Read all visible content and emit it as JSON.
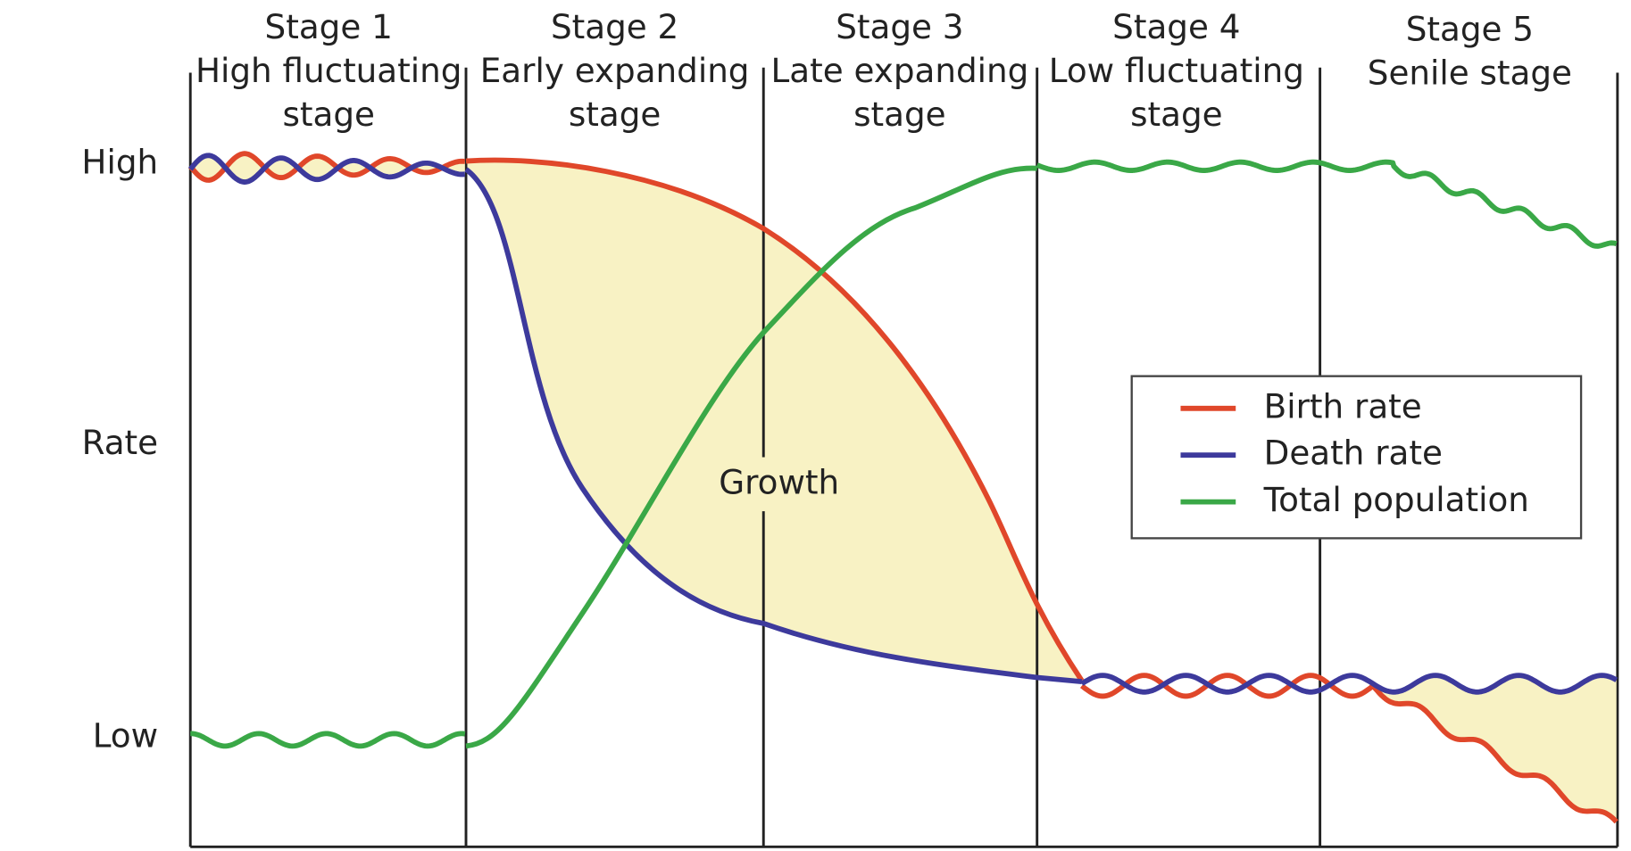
{
  "stages": [
    {
      "name": "Stage 1",
      "lines": [
        "High fluctuating",
        "stage"
      ]
    },
    {
      "name": "Stage 2",
      "lines": [
        "Early expanding",
        "stage"
      ]
    },
    {
      "name": "Stage 3",
      "lines": [
        "Late expanding",
        "stage"
      ]
    },
    {
      "name": "Stage 4",
      "lines": [
        "Low fluctuating",
        "stage"
      ]
    },
    {
      "name": "Stage 5",
      "lines": [
        "Senile stage"
      ]
    }
  ],
  "axis": {
    "high": "High",
    "label": "Rate",
    "low": "Low"
  },
  "annotation": "Growth",
  "legend": [
    "Birth rate",
    "Death rate",
    "Total population"
  ]
}
